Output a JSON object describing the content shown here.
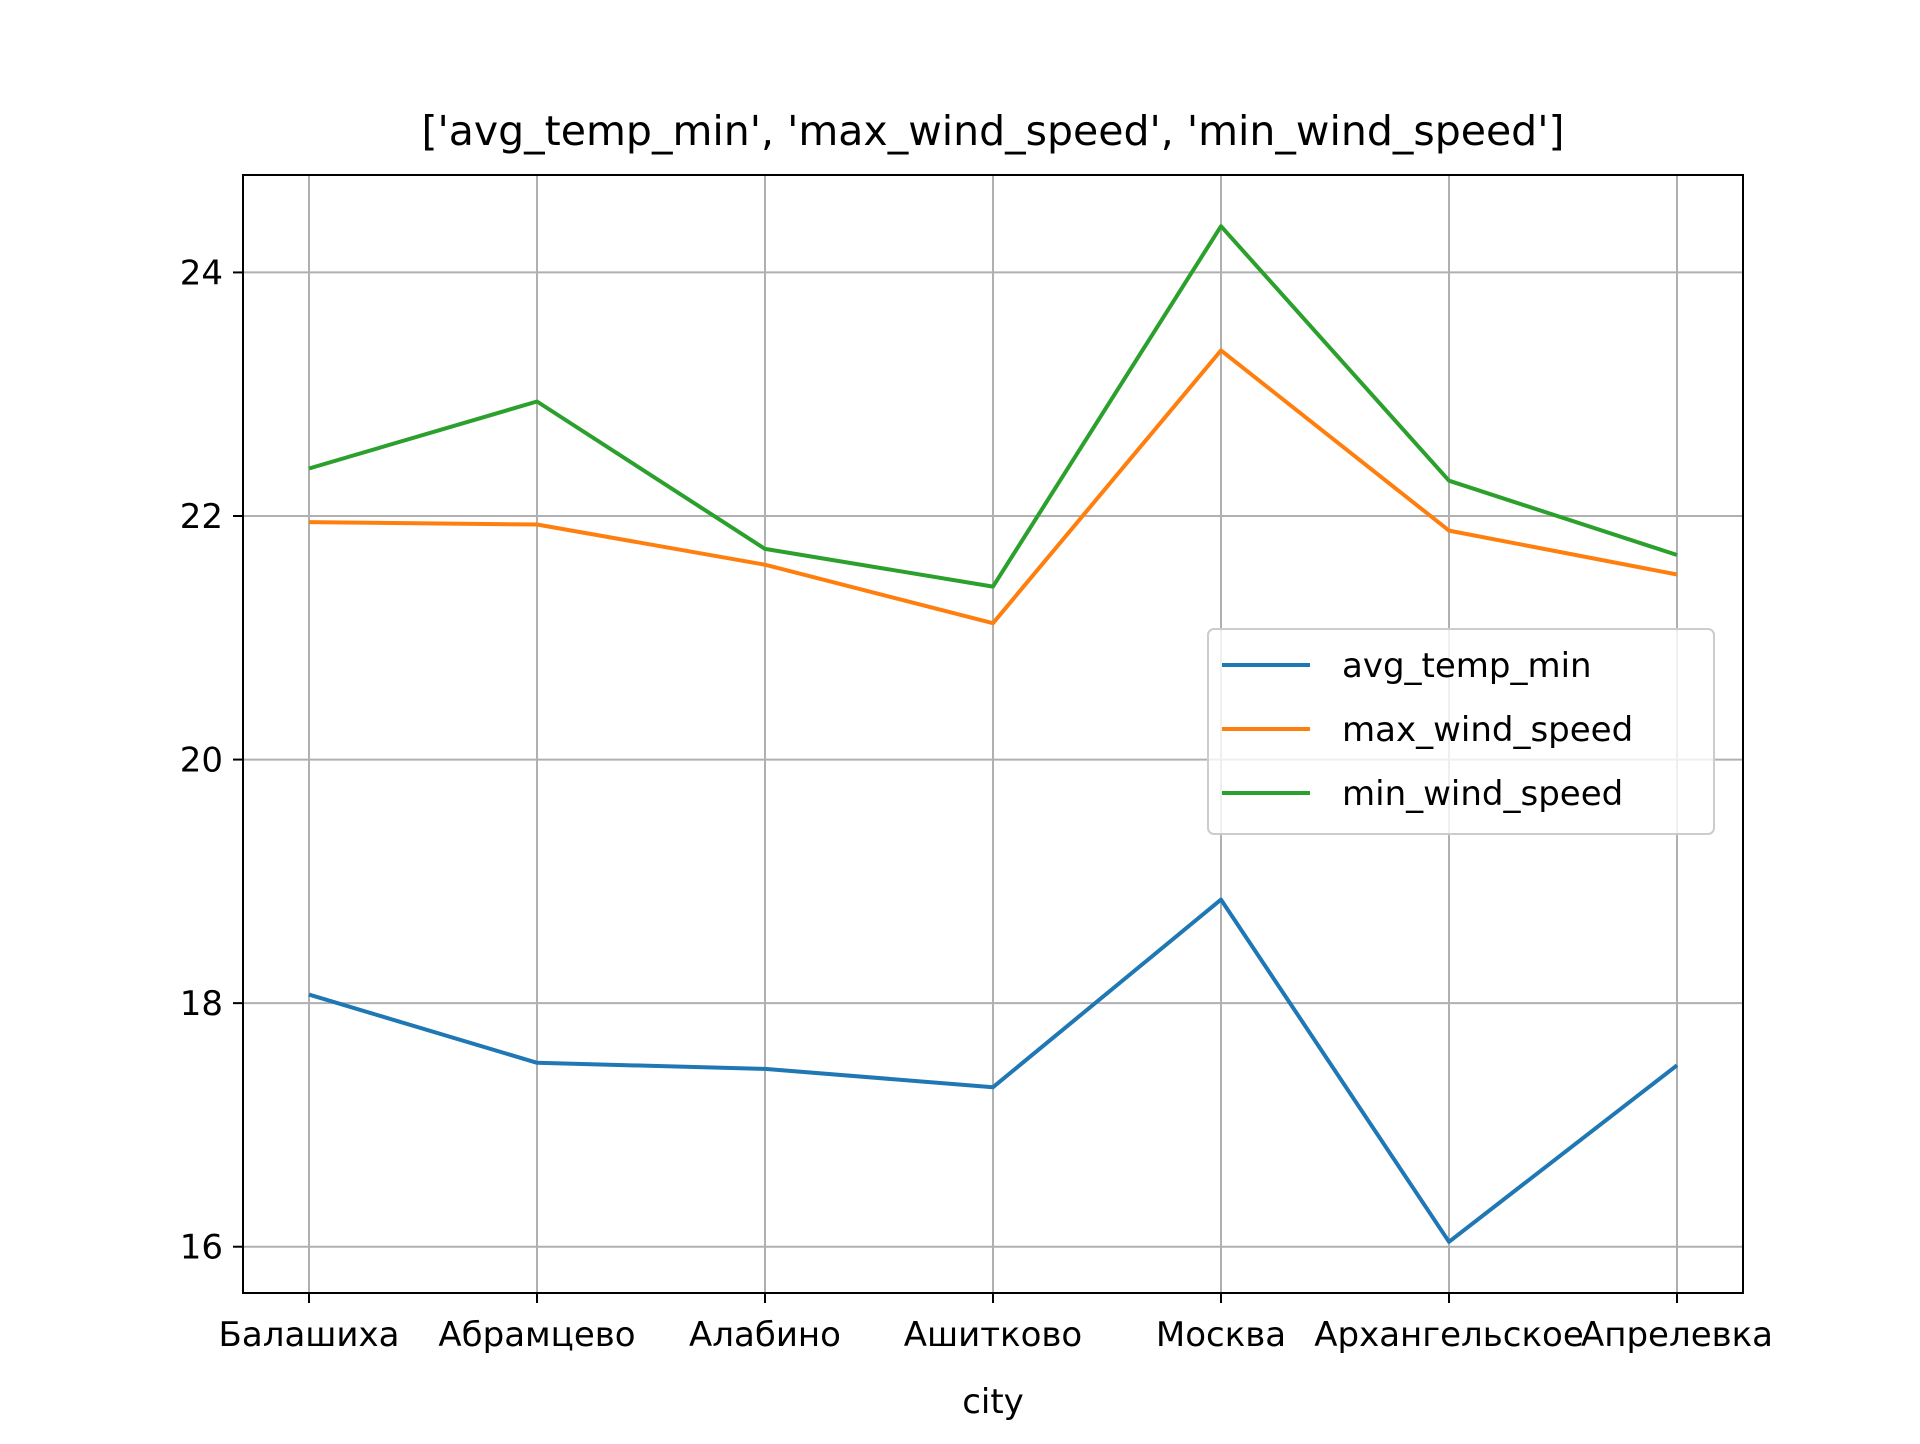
{
  "chart_data": {
    "type": "line",
    "title": "['avg_temp_min', 'max_wind_speed', 'min_wind_speed']",
    "xlabel": "city",
    "ylabel": "",
    "categories": [
      "Балашиха",
      "Абрамцево",
      "Алабино",
      "Ашитково",
      "Москва",
      "Архангельское",
      "Апрелевка"
    ],
    "ylim": [
      15.62,
      24.8
    ],
    "yticks": [
      16,
      18,
      20,
      22,
      24
    ],
    "grid": true,
    "legend_position": "center-right",
    "series": [
      {
        "name": "avg_temp_min",
        "color": "#1f77b4",
        "values": [
          18.07,
          17.51,
          17.46,
          17.31,
          18.85,
          16.04,
          17.49
        ]
      },
      {
        "name": "max_wind_speed",
        "color": "#ff7f0e",
        "values": [
          21.95,
          21.93,
          21.6,
          21.12,
          23.36,
          21.88,
          21.52
        ]
      },
      {
        "name": "min_wind_speed",
        "color": "#2ca02c",
        "values": [
          22.39,
          22.94,
          21.73,
          21.42,
          24.38,
          22.29,
          21.68
        ]
      }
    ]
  }
}
